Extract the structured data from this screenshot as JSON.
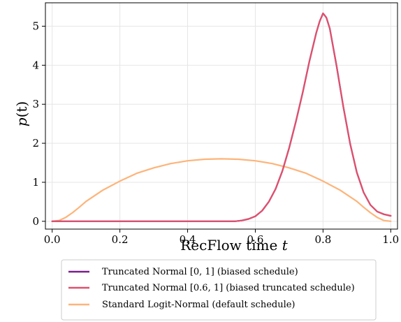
{
  "chart_data": {
    "type": "line",
    "xlabel": "RecFlow time",
    "xlabel_var": "t",
    "ylabel_main": "p",
    "ylabel_arg": "(t)",
    "xlim": [
      -0.02,
      1.02
    ],
    "ylim": [
      -0.2,
      5.6
    ],
    "xticks": [
      0.0,
      0.2,
      0.4,
      0.6,
      0.8,
      1.0
    ],
    "xtick_labels": [
      "0.0",
      "0.2",
      "0.4",
      "0.6",
      "0.8",
      "1.0"
    ],
    "yticks": [
      0,
      1,
      2,
      3,
      4,
      5
    ],
    "ytick_labels": [
      "0",
      "1",
      "2",
      "3",
      "4",
      "5"
    ],
    "grid": true,
    "legend_position": "below",
    "series": [
      {
        "name": "Truncated Normal [0, 1] (biased schedule)",
        "color": "#7a1f8a",
        "x": [
          0.0,
          0.4,
          0.5,
          0.54,
          0.56,
          0.58,
          0.6,
          0.62,
          0.64,
          0.66,
          0.68,
          0.7,
          0.72,
          0.74,
          0.76,
          0.78,
          0.79,
          0.8,
          0.81,
          0.82,
          0.84,
          0.86,
          0.88,
          0.9,
          0.92,
          0.94,
          0.96,
          0.98,
          1.0
        ],
        "values": [
          0.0,
          0.0,
          0.0,
          0.0,
          0.02,
          0.06,
          0.13,
          0.27,
          0.5,
          0.83,
          1.29,
          1.88,
          2.56,
          3.3,
          4.11,
          4.83,
          5.12,
          5.33,
          5.22,
          4.94,
          3.98,
          2.93,
          1.99,
          1.25,
          0.74,
          0.42,
          0.25,
          0.18,
          0.14
        ]
      },
      {
        "name": "Truncated Normal [0.6, 1] (biased truncated schedule)",
        "color": "#e0506b",
        "x": [
          0.0,
          0.4,
          0.5,
          0.54,
          0.56,
          0.58,
          0.6,
          0.62,
          0.64,
          0.66,
          0.68,
          0.7,
          0.72,
          0.74,
          0.76,
          0.78,
          0.79,
          0.8,
          0.81,
          0.82,
          0.84,
          0.86,
          0.88,
          0.9,
          0.92,
          0.94,
          0.96,
          0.98,
          1.0
        ],
        "values": [
          0.0,
          0.0,
          0.0,
          0.0,
          0.02,
          0.06,
          0.13,
          0.27,
          0.5,
          0.83,
          1.29,
          1.88,
          2.56,
          3.3,
          4.11,
          4.83,
          5.12,
          5.33,
          5.22,
          4.94,
          3.98,
          2.93,
          1.99,
          1.25,
          0.74,
          0.42,
          0.25,
          0.18,
          0.14
        ]
      },
      {
        "name": "Standard Logit-Normal (default schedule)",
        "color": "#fdb47a",
        "x": [
          0.0,
          0.02,
          0.04,
          0.06,
          0.08,
          0.1,
          0.15,
          0.2,
          0.25,
          0.3,
          0.35,
          0.4,
          0.45,
          0.5,
          0.55,
          0.6,
          0.65,
          0.7,
          0.75,
          0.8,
          0.85,
          0.9,
          0.92,
          0.94,
          0.96,
          0.98,
          1.0
        ],
        "values": [
          0.0,
          0.02,
          0.1,
          0.22,
          0.36,
          0.51,
          0.8,
          1.03,
          1.23,
          1.37,
          1.48,
          1.55,
          1.59,
          1.6,
          1.59,
          1.55,
          1.48,
          1.37,
          1.23,
          1.03,
          0.8,
          0.51,
          0.36,
          0.22,
          0.1,
          0.02,
          0.0
        ]
      }
    ]
  }
}
